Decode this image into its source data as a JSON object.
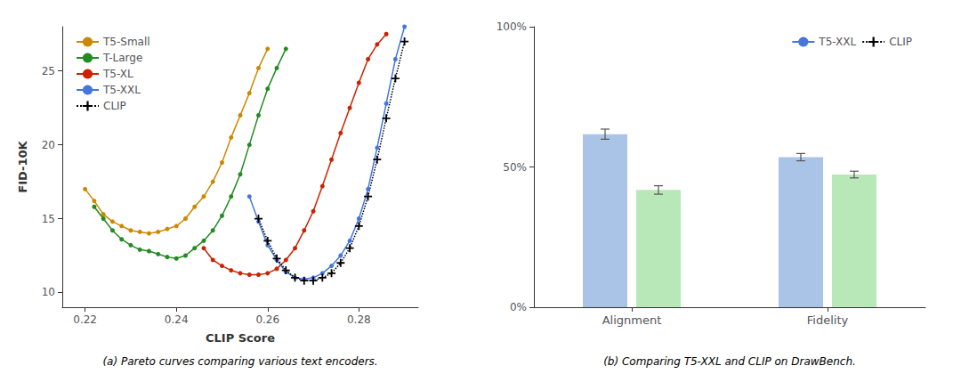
{
  "chart_data": [
    {
      "type": "line",
      "xlabel": "CLIP Score",
      "ylabel": "FID-10K",
      "caption": "(a) Pareto curves comparing various text encoders.",
      "xlim": [
        0.215,
        0.293
      ],
      "ylim": [
        9.0,
        28.0
      ],
      "xticks": [
        0.22,
        0.24,
        0.26,
        0.28
      ],
      "yticks": [
        10,
        15,
        20,
        25
      ],
      "grid": false,
      "legend": "upper left",
      "series": [
        {
          "name": "T5-Small",
          "color": "#CC8800",
          "marker": "circle",
          "line_style": "solid",
          "x": [
            0.22,
            0.222,
            0.224,
            0.226,
            0.228,
            0.23,
            0.232,
            0.234,
            0.236,
            0.238,
            0.24,
            0.242,
            0.244,
            0.246,
            0.248,
            0.25,
            0.252,
            0.254,
            0.256,
            0.258,
            0.26
          ],
          "values": [
            17.0,
            16.2,
            15.3,
            14.8,
            14.5,
            14.2,
            14.1,
            14.0,
            14.1,
            14.3,
            14.5,
            15.0,
            15.8,
            16.5,
            17.5,
            18.8,
            20.5,
            22.0,
            23.5,
            25.2,
            26.5
          ]
        },
        {
          "name": "T-Large",
          "color": "#228B22",
          "marker": "circle",
          "line_style": "solid",
          "x": [
            0.222,
            0.224,
            0.226,
            0.228,
            0.23,
            0.232,
            0.234,
            0.236,
            0.238,
            0.24,
            0.242,
            0.244,
            0.246,
            0.248,
            0.25,
            0.252,
            0.254,
            0.256,
            0.258,
            0.26,
            0.262,
            0.264
          ],
          "values": [
            15.8,
            15.0,
            14.2,
            13.6,
            13.2,
            12.9,
            12.8,
            12.6,
            12.4,
            12.3,
            12.5,
            13.0,
            13.5,
            14.2,
            15.2,
            16.5,
            18.0,
            20.0,
            22.0,
            23.8,
            25.2,
            26.5
          ]
        },
        {
          "name": "T5-XL",
          "color": "#CC2200",
          "marker": "circle",
          "line_style": "solid",
          "x": [
            0.246,
            0.248,
            0.25,
            0.252,
            0.254,
            0.256,
            0.258,
            0.26,
            0.262,
            0.264,
            0.266,
            0.268,
            0.27,
            0.272,
            0.274,
            0.276,
            0.278,
            0.28,
            0.282,
            0.284,
            0.286
          ],
          "values": [
            13.0,
            12.2,
            11.8,
            11.5,
            11.3,
            11.2,
            11.2,
            11.3,
            11.6,
            12.2,
            13.0,
            14.2,
            15.5,
            17.2,
            19.0,
            20.8,
            22.5,
            24.2,
            25.8,
            26.8,
            27.5
          ]
        },
        {
          "name": "T5-XXL",
          "color": "#4477DD",
          "marker": "circle",
          "line_style": "solid",
          "x": [
            0.256,
            0.258,
            0.26,
            0.262,
            0.264,
            0.266,
            0.268,
            0.27,
            0.272,
            0.274,
            0.276,
            0.278,
            0.28,
            0.282,
            0.284,
            0.286,
            0.288,
            0.29
          ],
          "values": [
            16.5,
            14.8,
            13.2,
            12.2,
            11.4,
            11.0,
            10.9,
            11.0,
            11.3,
            11.8,
            12.5,
            13.5,
            15.0,
            17.0,
            19.8,
            22.8,
            25.8,
            28.0
          ]
        },
        {
          "name": "CLIP",
          "color": "#000000",
          "marker": "plus",
          "line_style": "dotted",
          "x": [
            0.258,
            0.26,
            0.262,
            0.264,
            0.266,
            0.268,
            0.27,
            0.272,
            0.274,
            0.276,
            0.278,
            0.28,
            0.282,
            0.284,
            0.286,
            0.288,
            0.29
          ],
          "values": [
            15.0,
            13.5,
            12.3,
            11.5,
            11.0,
            10.8,
            10.8,
            11.0,
            11.3,
            12.0,
            13.0,
            14.5,
            16.5,
            19.0,
            21.8,
            24.5,
            27.0
          ]
        }
      ]
    },
    {
      "type": "bar",
      "caption": "(b) Comparing T5-XXL and CLIP on DrawBench.",
      "categories": [
        "Alignment",
        "Fidelity"
      ],
      "ylim": [
        0,
        1.0
      ],
      "yticks": [
        {
          "value": 0,
          "label": "0%"
        },
        {
          "value": 0.5,
          "label": "50%"
        },
        {
          "value": 1.0,
          "label": "100%"
        }
      ],
      "grid": false,
      "legend": "upper right",
      "series": [
        {
          "name": "T5-XXL",
          "color": "#aac4e8",
          "values": [
            0.617,
            0.535
          ],
          "errors": [
            0.018,
            0.013
          ]
        },
        {
          "name": "CLIP",
          "color": "#b8e8b8",
          "values": [
            0.418,
            0.473
          ],
          "errors": [
            0.015,
            0.012
          ]
        }
      ]
    }
  ]
}
